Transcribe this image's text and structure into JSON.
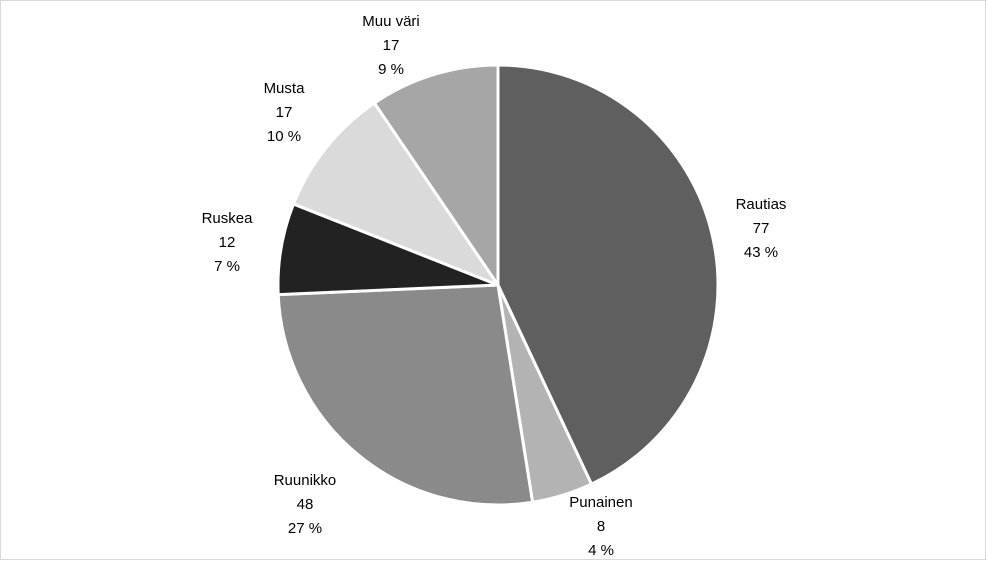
{
  "chart_data": {
    "type": "pie",
    "title": "",
    "legend": "none",
    "slices": [
      {
        "label": "Rautias",
        "value": 77,
        "percent": "43 %",
        "color": "#5f5f5f"
      },
      {
        "label": "Punainen",
        "value": 8,
        "percent": "4 %",
        "color": "#b3b3b3"
      },
      {
        "label": "Ruunikko",
        "value": 48,
        "percent": "27 %",
        "color": "#8a8a8a"
      },
      {
        "label": "Ruskea",
        "value": 12,
        "percent": "7 %",
        "color": "#222222"
      },
      {
        "label": "Musta",
        "value": 17,
        "percent": "10 %",
        "color": "#dadada"
      },
      {
        "label": "Muu väri",
        "value": 17,
        "percent": "9 %",
        "color": "#a6a6a6"
      }
    ]
  }
}
